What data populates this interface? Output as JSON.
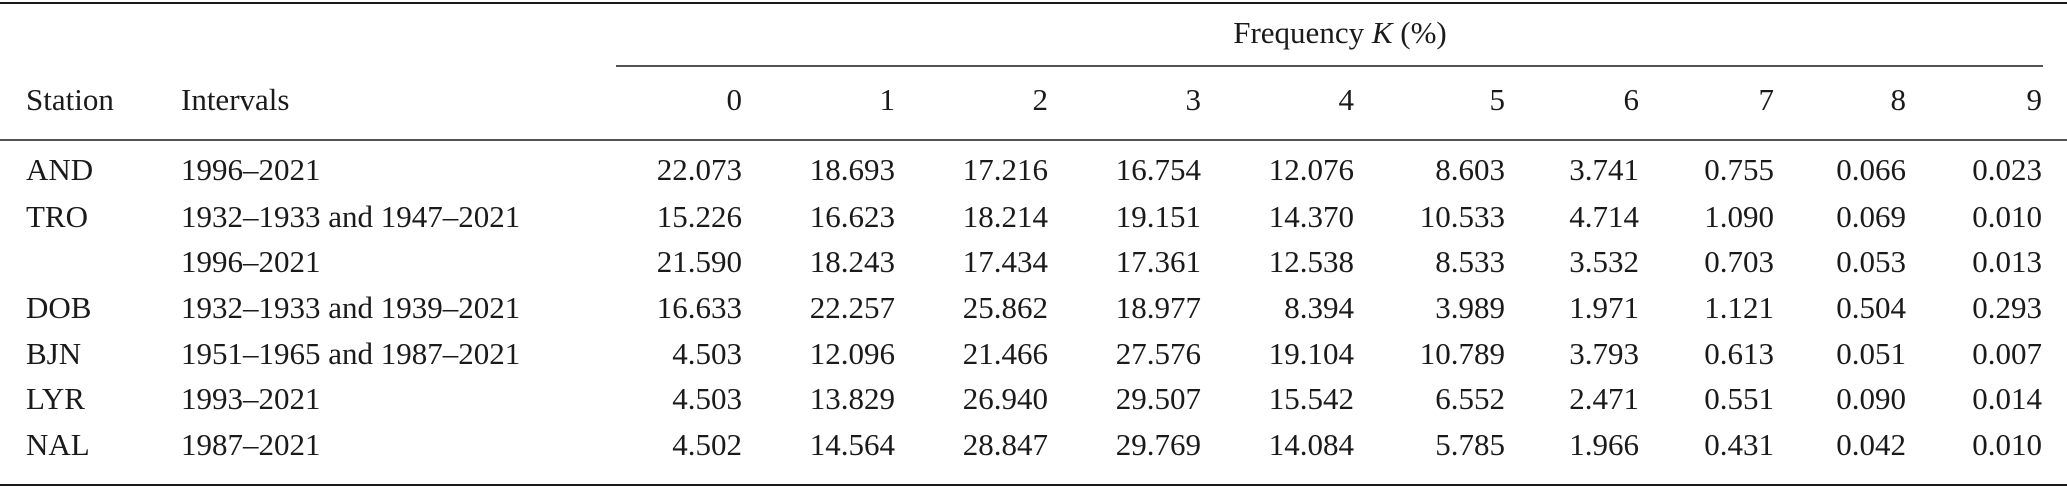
{
  "table": {
    "group_header": {
      "text": "Frequency",
      "variable": "K",
      "unit": "(%)"
    },
    "columns": [
      "Station",
      "Intervals",
      "0",
      "1",
      "2",
      "3",
      "4",
      "5",
      "6",
      "7",
      "8",
      "9"
    ],
    "rows": [
      [
        "AND",
        "1996–2021",
        "22.073",
        "18.693",
        "17.216",
        "16.754",
        "12.076",
        "8.603",
        "3.741",
        "0.755",
        "0.066",
        "0.023"
      ],
      [
        "TRO",
        "1932–1933 and 1947–2021",
        "15.226",
        "16.623",
        "18.214",
        "19.151",
        "14.370",
        "10.533",
        "4.714",
        "1.090",
        "0.069",
        "0.010"
      ],
      [
        null,
        "1996–2021",
        "21.590",
        "18.243",
        "17.434",
        "17.361",
        "12.538",
        "8.533",
        "3.532",
        "0.703",
        "0.053",
        "0.013"
      ],
      [
        "DOB",
        "1932–1933 and 1939–2021",
        "16.633",
        "22.257",
        "25.862",
        "18.977",
        "8.394",
        "3.989",
        "1.971",
        "1.121",
        "0.504",
        "0.293"
      ],
      [
        "BJN",
        "1951–1965 and 1987–2021",
        "4.503",
        "12.096",
        "21.466",
        "27.576",
        "19.104",
        "10.789",
        "3.793",
        "0.613",
        "0.051",
        "0.007"
      ],
      [
        "LYR",
        "1993–2021",
        "4.503",
        "13.829",
        "26.940",
        "29.507",
        "15.542",
        "6.552",
        "2.471",
        "0.551",
        "0.090",
        "0.014"
      ],
      [
        "NAL",
        "1987–2021",
        "4.502",
        "14.564",
        "28.847",
        "29.769",
        "14.084",
        "5.785",
        "1.966",
        "0.431",
        "0.042",
        "0.010"
      ]
    ]
  }
}
